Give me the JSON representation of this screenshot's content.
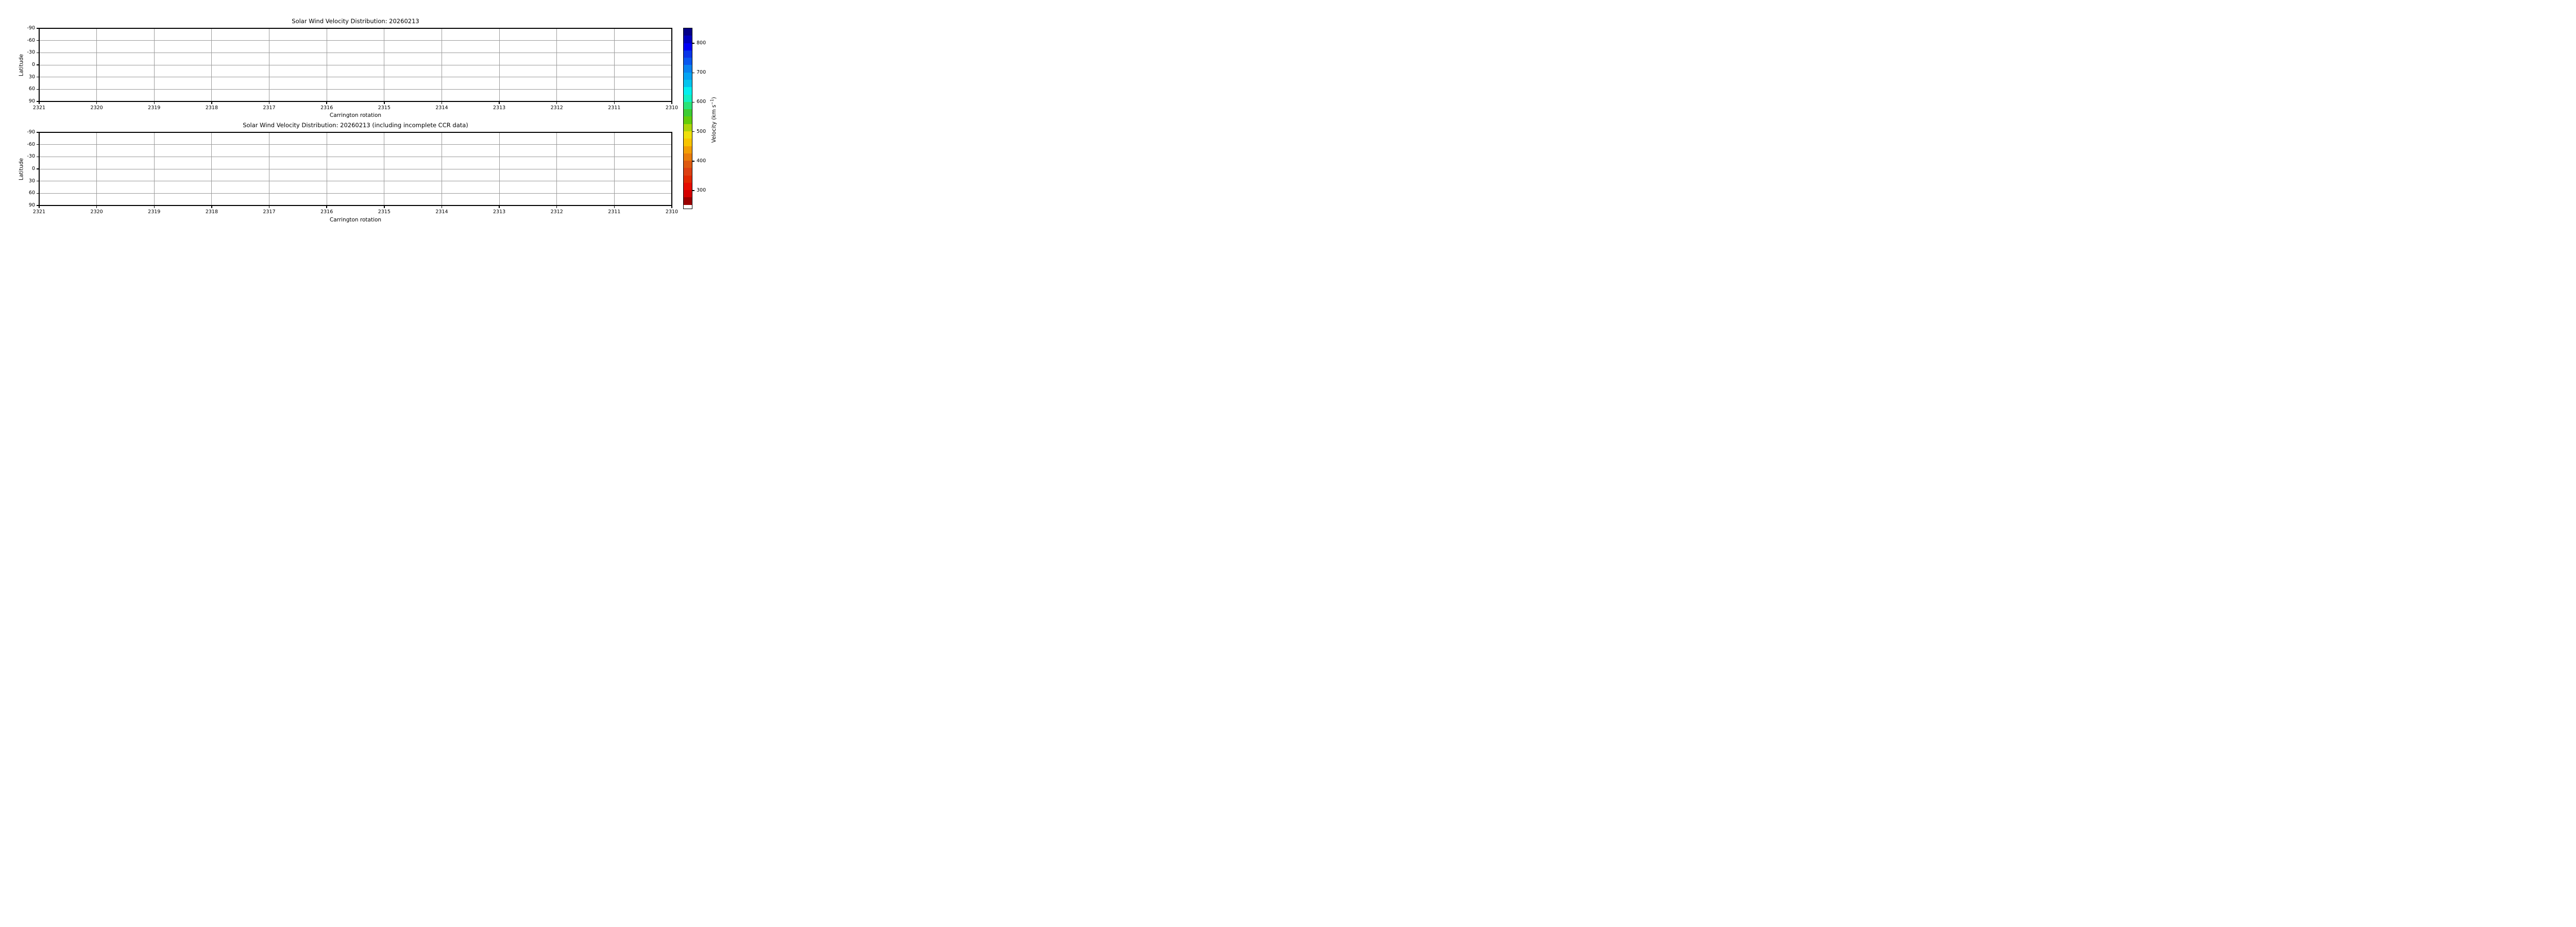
{
  "figure": {
    "background": "#ffffff",
    "grid_color": "#9b9b9b",
    "spine_color": "#000000",
    "panels": [
      {
        "title": "Solar Wind Velocity Distribution: 20260213",
        "xlabel": "Carrington rotation",
        "ylabel": "Latitude",
        "x_tick_labels": [
          "2321",
          "2320",
          "2319",
          "2318",
          "2317",
          "2316",
          "2315",
          "2314",
          "2313",
          "2312",
          "2311",
          "2310"
        ],
        "y_tick_labels": [
          "-90",
          "-60",
          "-30",
          "0",
          "30",
          "60",
          "90"
        ]
      },
      {
        "title": "Solar Wind Velocity Distribution: 20260213 (including incomplete CCR data)",
        "xlabel": "Carrington rotation",
        "ylabel": "Latitude",
        "x_tick_labels": [
          "2321",
          "2320",
          "2319",
          "2318",
          "2317",
          "2316",
          "2315",
          "2314",
          "2313",
          "2312",
          "2311",
          "2310"
        ],
        "y_tick_labels": [
          "-90",
          "-60",
          "-30",
          "0",
          "30",
          "60",
          "90"
        ]
      }
    ],
    "colorbar": {
      "label_pre": "Velocity (km s",
      "label_sup": "−1",
      "label_post": ")",
      "tick_labels": [
        "800",
        "700",
        "600",
        "500",
        "400",
        "300"
      ],
      "tick_values": [
        800,
        700,
        600,
        500,
        400,
        300
      ],
      "vmax": 850,
      "vmin": 250,
      "under_color": "#ffffff",
      "segment_colors": [
        "#050087",
        "#0000C0",
        "#0000F5",
        "#0A36E8",
        "#0A57EE",
        "#0982F0",
        "#05A3F3",
        "#04C4EE",
        "#04EFEF",
        "#12F0C3",
        "#2AE378",
        "#3DCC33",
        "#63CC0A",
        "#AED40A",
        "#EFDF0C",
        "#F7C400",
        "#F29E04",
        "#E87C0B",
        "#DE5A10",
        "#DC4012",
        "#E02800",
        "#E60D00",
        "#D50000",
        "#9B0000"
      ]
    }
  },
  "chart_data": [
    {
      "type": "heatmap",
      "title": "Solar Wind Velocity Distribution: 20260213",
      "xlabel": "Carrington rotation",
      "ylabel": "Latitude",
      "xlim": [
        2321,
        2310
      ],
      "ylim": [
        90,
        -90
      ],
      "x_ticks": [
        2321,
        2320,
        2319,
        2318,
        2317,
        2316,
        2315,
        2314,
        2313,
        2312,
        2311,
        2310
      ],
      "y_ticks": [
        -90,
        -60,
        -30,
        0,
        30,
        60,
        90
      ],
      "grid": true,
      "values": [],
      "colorbar": {
        "label": "Velocity (km s−1)",
        "ticks": [
          800,
          700,
          600,
          500,
          400,
          300
        ],
        "range": [
          250,
          850
        ],
        "levels": 24,
        "under_color": "#ffffff",
        "orientation": "vertical",
        "position": "right, shared by both panels"
      }
    },
    {
      "type": "heatmap",
      "title": "Solar Wind Velocity Distribution: 20260213 (including incomplete CCR data)",
      "xlabel": "Carrington rotation",
      "ylabel": "Latitude",
      "xlim": [
        2321,
        2310
      ],
      "ylim": [
        90,
        -90
      ],
      "x_ticks": [
        2321,
        2320,
        2319,
        2318,
        2317,
        2316,
        2315,
        2314,
        2313,
        2312,
        2311,
        2310
      ],
      "y_ticks": [
        -90,
        -60,
        -30,
        0,
        30,
        60,
        90
      ],
      "grid": true,
      "values": []
    }
  ]
}
